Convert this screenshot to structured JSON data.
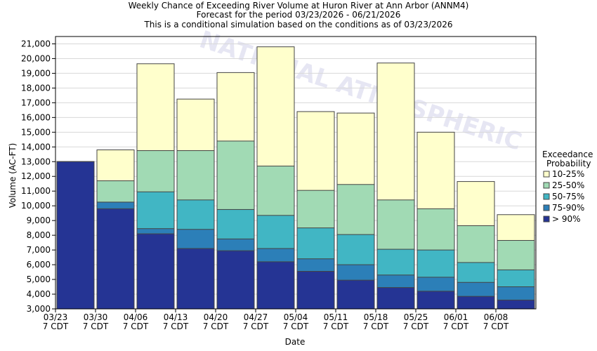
{
  "chart_data": {
    "type": "bar",
    "stacked": true,
    "title_lines": [
      "Weekly Chance of Exceeding River Volume at Huron River at Ann Arbor (ANNM4)",
      "Forecast for the period 03/23/2026 - 06/21/2026",
      "This is a conditional simulation based on the conditions as of 03/23/2026"
    ],
    "xlabel": "Date",
    "ylabel": "Volume (AC-FT)",
    "ylim": [
      3000,
      21500
    ],
    "yticks": [
      "3,000",
      "4,000",
      "5,000",
      "6,000",
      "7,000",
      "8,000",
      "9,000",
      "10,000",
      "11,000",
      "12,000",
      "13,000",
      "14,000",
      "15,000",
      "16,000",
      "17,000",
      "18,000",
      "19,000",
      "20,000",
      "21,000"
    ],
    "ytick_values": [
      3000,
      4000,
      5000,
      6000,
      7000,
      8000,
      9000,
      10000,
      11000,
      12000,
      13000,
      14000,
      15000,
      16000,
      17000,
      18000,
      19000,
      20000,
      21000
    ],
    "categories": [
      "03/23",
      "03/30",
      "04/06",
      "04/13",
      "04/20",
      "04/27",
      "05/04",
      "05/11",
      "05/18",
      "05/25",
      "06/01",
      "06/08"
    ],
    "category_sublabel": "7 CDT",
    "grid": true,
    "legend": {
      "title_lines": [
        "Exceedance",
        "Probability"
      ],
      "placement": "right"
    },
    "series": [
      {
        "name": "10-25%",
        "color": "#ffffcc",
        "tops": [
          13000,
          13800,
          19650,
          17250,
          19050,
          20800,
          16400,
          16300,
          19700,
          15000,
          11650,
          9400
        ]
      },
      {
        "name": "25-50%",
        "color": "#a1dab4",
        "tops": [
          13000,
          11700,
          13750,
          13750,
          14400,
          12700,
          11050,
          11450,
          10400,
          9800,
          8650,
          7650
        ]
      },
      {
        "name": "50-75%",
        "color": "#41b6c4",
        "tops": [
          13000,
          10250,
          10950,
          10400,
          9750,
          9350,
          8500,
          8050,
          7050,
          7000,
          6150,
          5650
        ]
      },
      {
        "name": "75-90%",
        "color": "#2c7fb8",
        "tops": [
          13000,
          10250,
          8450,
          8400,
          7750,
          7100,
          6400,
          6000,
          5300,
          5150,
          4800,
          4500
        ]
      },
      {
        "name": "> 90%",
        "color": "#253494",
        "tops": [
          13000,
          9800,
          8100,
          7100,
          6950,
          6200,
          5550,
          4950,
          4450,
          4200,
          3850,
          3600
        ]
      }
    ],
    "watermark": "NATIONAL ATMOSPHERIC"
  }
}
